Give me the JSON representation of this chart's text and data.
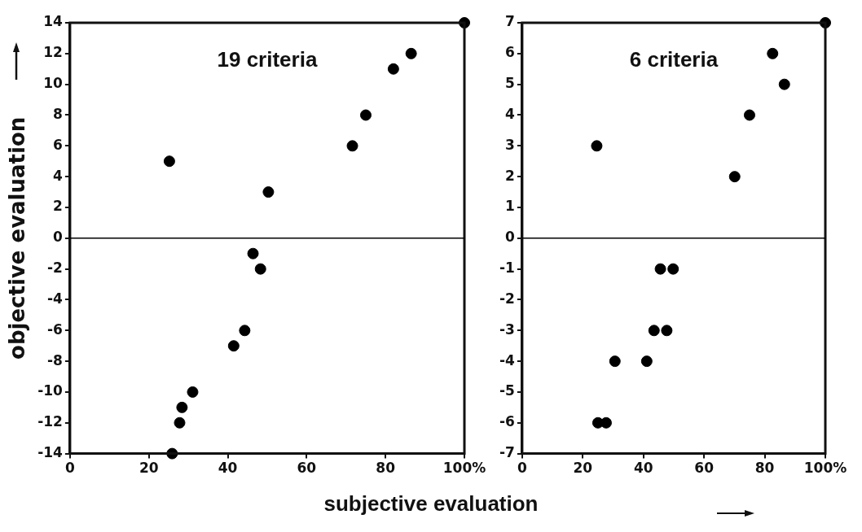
{
  "chart_data": [
    {
      "type": "scatter",
      "annotations": [
        "19 criteria"
      ],
      "xlabel": "subjective evaluation",
      "ylabel": "objective evaluation",
      "xlim": [
        0,
        100
      ],
      "xticks": [
        0,
        20,
        40,
        60,
        80,
        {
          "value": 100,
          "label": "100%"
        }
      ],
      "ylim": [
        -14,
        14
      ],
      "yticks": [
        -14,
        -12,
        -10,
        -8,
        -6,
        -4,
        -2,
        0,
        2,
        4,
        6,
        8,
        10,
        12,
        14
      ],
      "grid": false,
      "legend": false,
      "marker": "circle",
      "ref_lines": [
        {
          "axis": "y",
          "value": 0,
          "color": "#000000"
        }
      ],
      "series": [
        {
          "color": "#000000",
          "x": [
            25.2,
            50.3,
            71.6,
            75,
            82,
            86.5,
            100,
            46.4,
            48.3,
            44.3,
            41.5,
            31.1,
            28.4,
            27.8,
            25.9
          ],
          "values": [
            5,
            3,
            6,
            8,
            11,
            12,
            14,
            -1,
            -2,
            -6,
            -7,
            -10,
            -11,
            -12,
            -14
          ]
        }
      ]
    },
    {
      "type": "scatter",
      "annotations": [
        "6 criteria"
      ],
      "xlim": [
        0,
        100
      ],
      "xticks": [
        0,
        20,
        40,
        60,
        80,
        {
          "value": 100,
          "label": "100%"
        }
      ],
      "ylim": [
        -7,
        7
      ],
      "yticks": [
        -7,
        -6,
        -5,
        -4,
        -3,
        -2,
        -1,
        0,
        1,
        2,
        3,
        4,
        5,
        6,
        7
      ],
      "grid": false,
      "legend": false,
      "marker": "circle",
      "ref_lines": [
        {
          "axis": "y",
          "value": 0,
          "color": "#000000"
        }
      ],
      "series": [
        {
          "color": "#000000",
          "x": [
            24.6,
            70.1,
            75,
            82.6,
            86.5,
            100,
            45.6,
            49.8,
            43.5,
            47.7,
            30.6,
            41.1,
            25,
            27.7
          ],
          "values": [
            3,
            2,
            4,
            6,
            5,
            7,
            -1,
            -1,
            -3,
            -3,
            -4,
            -4,
            -6,
            -6
          ]
        }
      ]
    }
  ]
}
